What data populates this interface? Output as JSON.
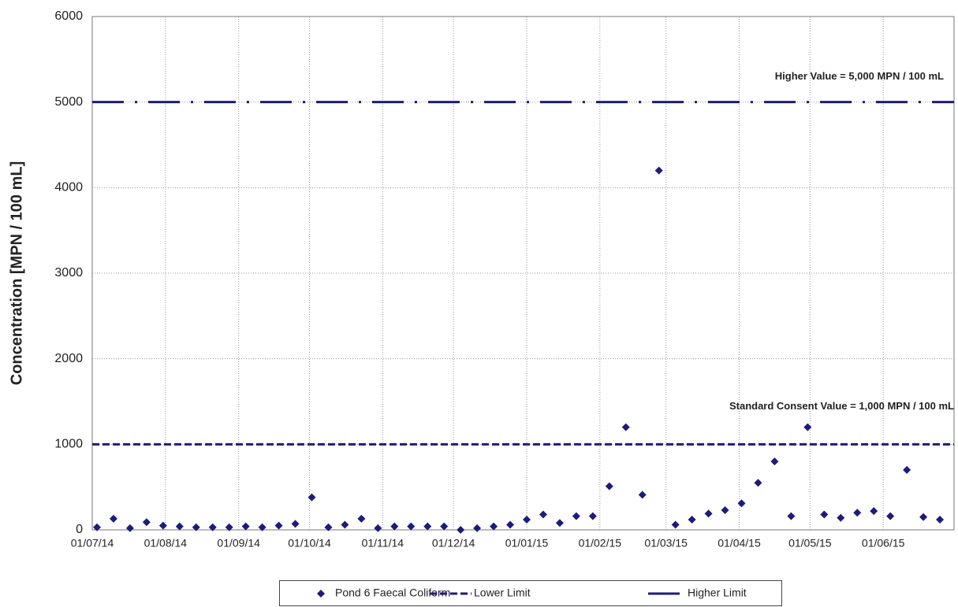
{
  "chart_data": {
    "type": "scatter",
    "y_label": "Concentration [MPN / 100 mL]",
    "x": [
      "03/07/14",
      "10/07/14",
      "17/07/14",
      "24/07/14",
      "31/07/14",
      "07/08/14",
      "14/08/14",
      "21/08/14",
      "28/08/14",
      "04/09/14",
      "11/09/14",
      "18/09/14",
      "25/09/14",
      "02/10/14",
      "09/10/14",
      "16/10/14",
      "23/10/14",
      "30/10/14",
      "06/11/14",
      "13/11/14",
      "20/11/14",
      "27/11/14",
      "04/12/14",
      "11/12/14",
      "18/12/14",
      "25/12/14",
      "01/01/15",
      "08/01/15",
      "15/01/15",
      "22/01/15",
      "29/01/15",
      "05/02/15",
      "12/02/15",
      "19/02/15",
      "26/02/15",
      "05/03/15",
      "12/03/15",
      "19/03/15",
      "26/03/15",
      "02/04/15",
      "09/04/15",
      "16/04/15",
      "23/04/15",
      "30/04/15",
      "07/05/15",
      "14/05/15",
      "21/05/15",
      "28/05/15",
      "04/06/15",
      "11/06/15",
      "18/06/15",
      "25/06/15"
    ],
    "series": [
      {
        "name": "Pond 6 Faecal Coliform",
        "color": "#1c1c7a",
        "values": [
          30,
          130,
          20,
          90,
          50,
          40,
          30,
          30,
          30,
          40,
          30,
          50,
          70,
          380,
          30,
          60,
          130,
          20,
          40,
          40,
          40,
          40,
          0,
          20,
          40,
          60,
          120,
          180,
          80,
          160,
          160,
          510,
          1200,
          410,
          4200,
          60,
          120,
          190,
          230,
          310,
          550,
          800,
          160,
          1200,
          180,
          140,
          200,
          220,
          160,
          700,
          150,
          120
        ]
      }
    ],
    "limits": [
      {
        "name": "Lower Limit",
        "color": "#1c1c7a",
        "value": 1000,
        "annotation": "Standard Consent Value = 1,000 MPN / 100 mL"
      },
      {
        "name": "Higher Limit",
        "color": "#1c1c7a",
        "value": 5000,
        "annotation": "Higher Value = 5,000 MPN / 100 mL"
      }
    ],
    "xlim": [
      "01/07/14",
      "01/07/15"
    ],
    "xticks": [
      "01/07/14",
      "01/08/14",
      "01/09/14",
      "01/10/14",
      "01/11/14",
      "01/12/14",
      "01/01/15",
      "01/02/15",
      "01/03/15",
      "01/04/15",
      "01/05/15",
      "01/06/15"
    ],
    "ylim": [
      0,
      6000
    ],
    "yticks": [
      0,
      1000,
      2000,
      3000,
      4000,
      5000,
      6000
    ],
    "grid": true,
    "legend": "bottom"
  }
}
